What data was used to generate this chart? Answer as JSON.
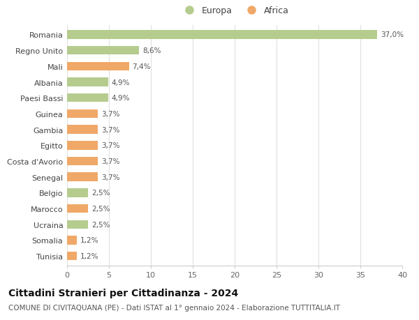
{
  "categories": [
    "Tunisia",
    "Somalia",
    "Ucraina",
    "Marocco",
    "Belgio",
    "Senegal",
    "Costa d'Avorio",
    "Egitto",
    "Gambia",
    "Guinea",
    "Paesi Bassi",
    "Albania",
    "Mali",
    "Regno Unito",
    "Romania"
  ],
  "values": [
    1.2,
    1.2,
    2.5,
    2.5,
    2.5,
    3.7,
    3.7,
    3.7,
    3.7,
    3.7,
    4.9,
    4.9,
    7.4,
    8.6,
    37.0
  ],
  "continents": [
    "Africa",
    "Africa",
    "Europa",
    "Africa",
    "Europa",
    "Africa",
    "Africa",
    "Africa",
    "Africa",
    "Africa",
    "Europa",
    "Europa",
    "Africa",
    "Europa",
    "Europa"
  ],
  "labels": [
    "1,2%",
    "1,2%",
    "2,5%",
    "2,5%",
    "2,5%",
    "3,7%",
    "3,7%",
    "3,7%",
    "3,7%",
    "3,7%",
    "4,9%",
    "4,9%",
    "7,4%",
    "8,6%",
    "37,0%"
  ],
  "color_europa": "#b5cc8e",
  "color_africa": "#f0a868",
  "background_color": "#ffffff",
  "title": "Cittadini Stranieri per Cittadinanza - 2024",
  "subtitle": "COMUNE DI CIVITAQUANA (PE) - Dati ISTAT al 1° gennaio 2024 - Elaborazione TUTTITALIA.IT",
  "xlim": [
    0,
    40
  ],
  "xticks": [
    0,
    5,
    10,
    15,
    20,
    25,
    30,
    35,
    40
  ],
  "grid_color": "#e0e0e0",
  "bar_height": 0.55,
  "label_fontsize": 7.5,
  "title_fontsize": 10,
  "subtitle_fontsize": 7.5,
  "tick_fontsize": 8,
  "ytick_fontsize": 8
}
